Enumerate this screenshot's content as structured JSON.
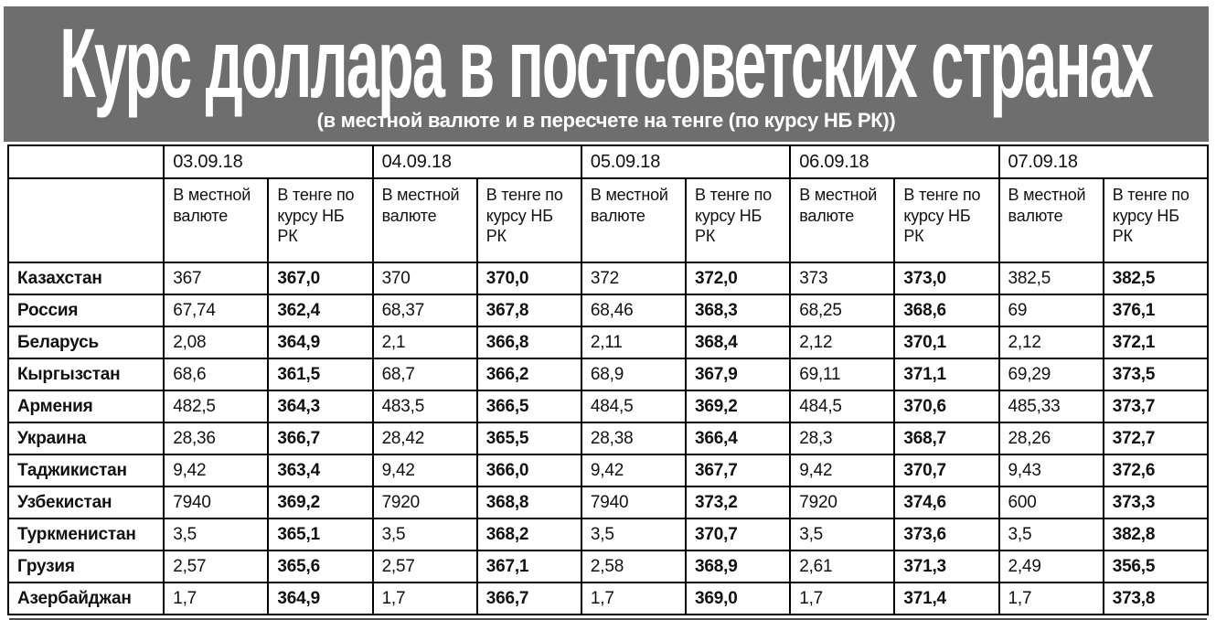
{
  "banner": {
    "title": "Курс доллара в постсоветских странах",
    "subtitle": "(в местной валюте и в пересчете на тенге (по курсу НБ РК))"
  },
  "colors": {
    "banner_bg": "#6e6e6e",
    "banner_text": "#ffffff",
    "table_border": "#000000",
    "table_bg": "#ffffff",
    "table_text": "#111111"
  },
  "chart_data": {
    "type": "table",
    "title": "Курс доллара в постсоветских странах",
    "subtitle": "(в местной валюте и в пересчете на тенге (по курсу НБ РК))",
    "dates": [
      "03.09.18",
      "04.09.18",
      "05.09.18",
      "06.09.18",
      "07.09.18"
    ],
    "subheaders": {
      "local": "В местной валюте",
      "tenge": "В тенге по курсу НБ РК"
    },
    "rows": [
      {
        "country": "Казахстан",
        "values": [
          "367",
          "367,0",
          "370",
          "370,0",
          "372",
          "372,0",
          "373",
          "373,0",
          "382,5",
          "382,5"
        ]
      },
      {
        "country": "Россия",
        "values": [
          "67,74",
          "362,4",
          "68,37",
          "367,8",
          "68,46",
          "368,3",
          "68,25",
          "368,6",
          "69",
          "376,1"
        ]
      },
      {
        "country": "Беларусь",
        "values": [
          "2,08",
          "364,9",
          "2,1",
          "366,8",
          "2,11",
          "368,4",
          "2,12",
          "370,1",
          "2,12",
          "372,1"
        ]
      },
      {
        "country": "Кыргызстан",
        "values": [
          "68,6",
          "361,5",
          "68,7",
          "366,2",
          "68,9",
          "367,9",
          "69,11",
          "371,1",
          "69,29",
          "373,5"
        ]
      },
      {
        "country": "Армения",
        "values": [
          "482,5",
          "364,3",
          "483,5",
          "366,5",
          "484,5",
          "369,2",
          "484,5",
          "370,6",
          "485,33",
          "373,7"
        ]
      },
      {
        "country": "Украина",
        "values": [
          "28,36",
          "366,7",
          "28,42",
          "365,5",
          "28,38",
          "366,4",
          "28,3",
          "368,7",
          "28,26",
          "372,7"
        ]
      },
      {
        "country": "Таджикистан",
        "values": [
          "9,42",
          "363,4",
          "9,42",
          "366,0",
          "9,42",
          "367,7",
          "9,42",
          "370,7",
          "9,43",
          "372,6"
        ]
      },
      {
        "country": "Узбекистан",
        "values": [
          "7940",
          "369,2",
          "7920",
          "368,8",
          "7940",
          "373,2",
          "7920",
          "374,6",
          "600",
          "373,3"
        ]
      },
      {
        "country": "Туркменистан",
        "values": [
          "3,5",
          "365,1",
          "3,5",
          "368,2",
          "3,5",
          "370,7",
          "3,5",
          "373,6",
          "3,5",
          "382,8"
        ]
      },
      {
        "country": "Грузия",
        "values": [
          "2,57",
          "365,6",
          "2,57",
          "367,1",
          "2,58",
          "368,9",
          "2,61",
          "371,3",
          "2,49",
          "356,5"
        ]
      },
      {
        "country": "Азербайджан",
        "values": [
          "1,7",
          "364,9",
          "1,7",
          "366,7",
          "1,7",
          "369,0",
          "1,7",
          "371,4",
          "1,7",
          "373,8"
        ]
      }
    ]
  }
}
